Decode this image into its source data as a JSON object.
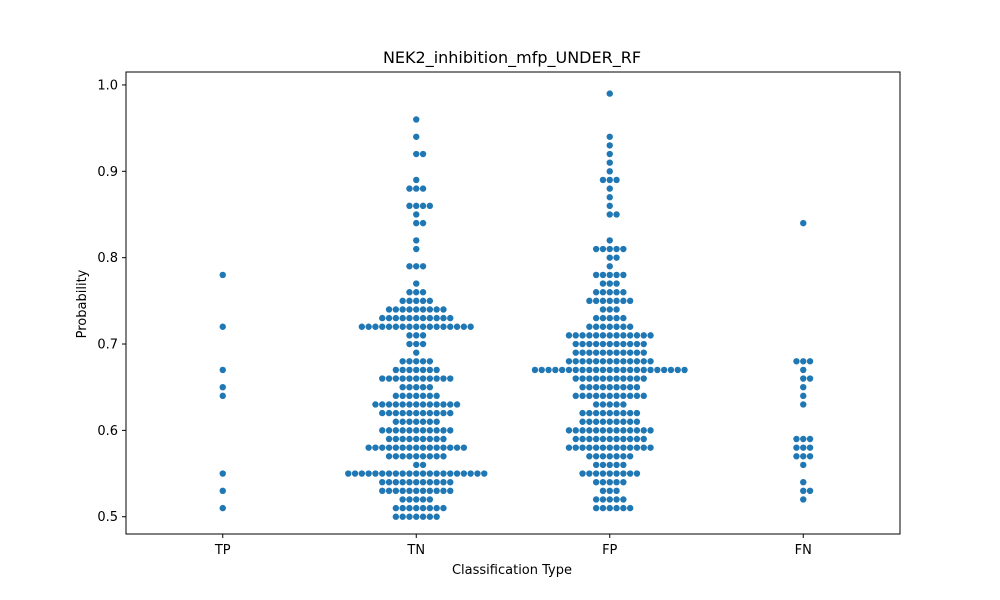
{
  "chart_data": {
    "type": "scatter",
    "subtype": "swarm",
    "title": "NEK2_inhibition_mfp_UNDER_RF",
    "xlabel": "Classification Type",
    "ylabel": "Probability",
    "categories": [
      "TP",
      "TN",
      "FP",
      "FN"
    ],
    "ylim": [
      0.48,
      1.015
    ],
    "yticks": [
      0.5,
      0.6,
      0.7,
      0.8,
      0.9,
      1.0
    ],
    "ytick_labels": [
      "0.5",
      "0.6",
      "0.7",
      "0.8",
      "0.9",
      "1.0"
    ],
    "grid": false,
    "legend": "none",
    "point_color": "#1f77b4",
    "series": [
      {
        "category": "TP",
        "values": [
          0.51,
          0.53,
          0.55,
          0.64,
          0.65,
          0.67,
          0.72,
          0.78
        ]
      },
      {
        "category": "TN",
        "values": [
          0.5,
          0.5,
          0.5,
          0.5,
          0.5,
          0.5,
          0.5,
          0.51,
          0.51,
          0.51,
          0.51,
          0.51,
          0.51,
          0.51,
          0.51,
          0.52,
          0.52,
          0.52,
          0.52,
          0.52,
          0.53,
          0.53,
          0.53,
          0.53,
          0.53,
          0.53,
          0.53,
          0.53,
          0.53,
          0.53,
          0.53,
          0.54,
          0.54,
          0.54,
          0.54,
          0.54,
          0.54,
          0.54,
          0.54,
          0.54,
          0.54,
          0.54,
          0.55,
          0.55,
          0.55,
          0.55,
          0.55,
          0.55,
          0.55,
          0.55,
          0.55,
          0.55,
          0.55,
          0.55,
          0.55,
          0.55,
          0.55,
          0.55,
          0.55,
          0.55,
          0.55,
          0.55,
          0.55,
          0.56,
          0.56,
          0.57,
          0.57,
          0.57,
          0.57,
          0.57,
          0.57,
          0.57,
          0.57,
          0.57,
          0.58,
          0.58,
          0.58,
          0.58,
          0.58,
          0.58,
          0.58,
          0.58,
          0.58,
          0.58,
          0.58,
          0.58,
          0.58,
          0.58,
          0.58,
          0.59,
          0.59,
          0.59,
          0.59,
          0.59,
          0.59,
          0.59,
          0.59,
          0.59,
          0.6,
          0.6,
          0.6,
          0.6,
          0.6,
          0.6,
          0.6,
          0.6,
          0.6,
          0.6,
          0.6,
          0.61,
          0.61,
          0.61,
          0.61,
          0.61,
          0.61,
          0.61,
          0.62,
          0.62,
          0.62,
          0.62,
          0.62,
          0.62,
          0.62,
          0.62,
          0.62,
          0.62,
          0.62,
          0.63,
          0.63,
          0.63,
          0.63,
          0.63,
          0.63,
          0.63,
          0.63,
          0.63,
          0.63,
          0.63,
          0.63,
          0.63,
          0.64,
          0.64,
          0.64,
          0.64,
          0.64,
          0.64,
          0.64,
          0.65,
          0.65,
          0.65,
          0.65,
          0.65,
          0.66,
          0.66,
          0.66,
          0.66,
          0.66,
          0.66,
          0.66,
          0.66,
          0.66,
          0.66,
          0.66,
          0.67,
          0.67,
          0.67,
          0.67,
          0.67,
          0.67,
          0.67,
          0.68,
          0.68,
          0.68,
          0.68,
          0.68,
          0.69,
          0.7,
          0.7,
          0.7,
          0.71,
          0.71,
          0.71,
          0.72,
          0.72,
          0.72,
          0.72,
          0.72,
          0.72,
          0.72,
          0.72,
          0.72,
          0.72,
          0.72,
          0.72,
          0.72,
          0.72,
          0.72,
          0.72,
          0.72,
          0.73,
          0.73,
          0.73,
          0.73,
          0.73,
          0.73,
          0.73,
          0.73,
          0.73,
          0.73,
          0.73,
          0.74,
          0.74,
          0.74,
          0.74,
          0.74,
          0.74,
          0.74,
          0.74,
          0.74,
          0.75,
          0.75,
          0.75,
          0.75,
          0.75,
          0.76,
          0.76,
          0.76,
          0.77,
          0.79,
          0.79,
          0.79,
          0.81,
          0.82,
          0.84,
          0.84,
          0.85,
          0.86,
          0.86,
          0.86,
          0.86,
          0.88,
          0.88,
          0.88,
          0.89,
          0.92,
          0.92,
          0.94,
          0.96
        ]
      },
      {
        "category": "FP",
        "values": [
          0.51,
          0.51,
          0.51,
          0.51,
          0.51,
          0.51,
          0.52,
          0.52,
          0.52,
          0.52,
          0.52,
          0.53,
          0.53,
          0.53,
          0.54,
          0.54,
          0.54,
          0.54,
          0.54,
          0.55,
          0.55,
          0.55,
          0.55,
          0.55,
          0.55,
          0.55,
          0.55,
          0.55,
          0.56,
          0.56,
          0.56,
          0.56,
          0.56,
          0.57,
          0.57,
          0.57,
          0.57,
          0.57,
          0.57,
          0.57,
          0.58,
          0.58,
          0.58,
          0.58,
          0.58,
          0.58,
          0.58,
          0.58,
          0.58,
          0.58,
          0.58,
          0.58,
          0.58,
          0.59,
          0.59,
          0.59,
          0.59,
          0.59,
          0.59,
          0.59,
          0.59,
          0.59,
          0.59,
          0.59,
          0.6,
          0.6,
          0.6,
          0.6,
          0.6,
          0.6,
          0.6,
          0.6,
          0.6,
          0.6,
          0.6,
          0.6,
          0.6,
          0.61,
          0.61,
          0.61,
          0.61,
          0.61,
          0.61,
          0.61,
          0.61,
          0.61,
          0.62,
          0.62,
          0.62,
          0.62,
          0.62,
          0.62,
          0.62,
          0.62,
          0.62,
          0.63,
          0.63,
          0.63,
          0.63,
          0.63,
          0.64,
          0.64,
          0.64,
          0.64,
          0.64,
          0.64,
          0.64,
          0.64,
          0.64,
          0.64,
          0.64,
          0.65,
          0.65,
          0.65,
          0.65,
          0.65,
          0.65,
          0.65,
          0.65,
          0.65,
          0.66,
          0.66,
          0.66,
          0.66,
          0.66,
          0.66,
          0.66,
          0.66,
          0.66,
          0.66,
          0.66,
          0.67,
          0.67,
          0.67,
          0.67,
          0.67,
          0.67,
          0.67,
          0.67,
          0.67,
          0.67,
          0.67,
          0.67,
          0.67,
          0.67,
          0.67,
          0.67,
          0.67,
          0.67,
          0.67,
          0.67,
          0.67,
          0.67,
          0.67,
          0.68,
          0.68,
          0.68,
          0.68,
          0.68,
          0.68,
          0.68,
          0.68,
          0.68,
          0.68,
          0.68,
          0.68,
          0.68,
          0.69,
          0.69,
          0.69,
          0.69,
          0.69,
          0.69,
          0.69,
          0.69,
          0.69,
          0.69,
          0.69,
          0.7,
          0.7,
          0.7,
          0.7,
          0.7,
          0.7,
          0.7,
          0.7,
          0.7,
          0.7,
          0.7,
          0.71,
          0.71,
          0.71,
          0.71,
          0.71,
          0.71,
          0.71,
          0.71,
          0.71,
          0.71,
          0.71,
          0.71,
          0.71,
          0.72,
          0.72,
          0.72,
          0.72,
          0.72,
          0.72,
          0.72,
          0.73,
          0.73,
          0.73,
          0.73,
          0.73,
          0.74,
          0.74,
          0.74,
          0.75,
          0.75,
          0.75,
          0.75,
          0.75,
          0.75,
          0.75,
          0.76,
          0.76,
          0.76,
          0.76,
          0.76,
          0.77,
          0.77,
          0.77,
          0.78,
          0.78,
          0.78,
          0.78,
          0.78,
          0.79,
          0.8,
          0.8,
          0.81,
          0.81,
          0.81,
          0.81,
          0.81,
          0.82,
          0.85,
          0.85,
          0.86,
          0.87,
          0.88,
          0.89,
          0.89,
          0.89,
          0.9,
          0.91,
          0.92,
          0.93,
          0.94,
          0.99
        ]
      },
      {
        "category": "FN",
        "values": [
          0.52,
          0.53,
          0.53,
          0.54,
          0.56,
          0.57,
          0.57,
          0.57,
          0.58,
          0.58,
          0.58,
          0.59,
          0.59,
          0.59,
          0.63,
          0.64,
          0.65,
          0.66,
          0.66,
          0.67,
          0.68,
          0.68,
          0.68,
          0.84
        ]
      }
    ]
  }
}
